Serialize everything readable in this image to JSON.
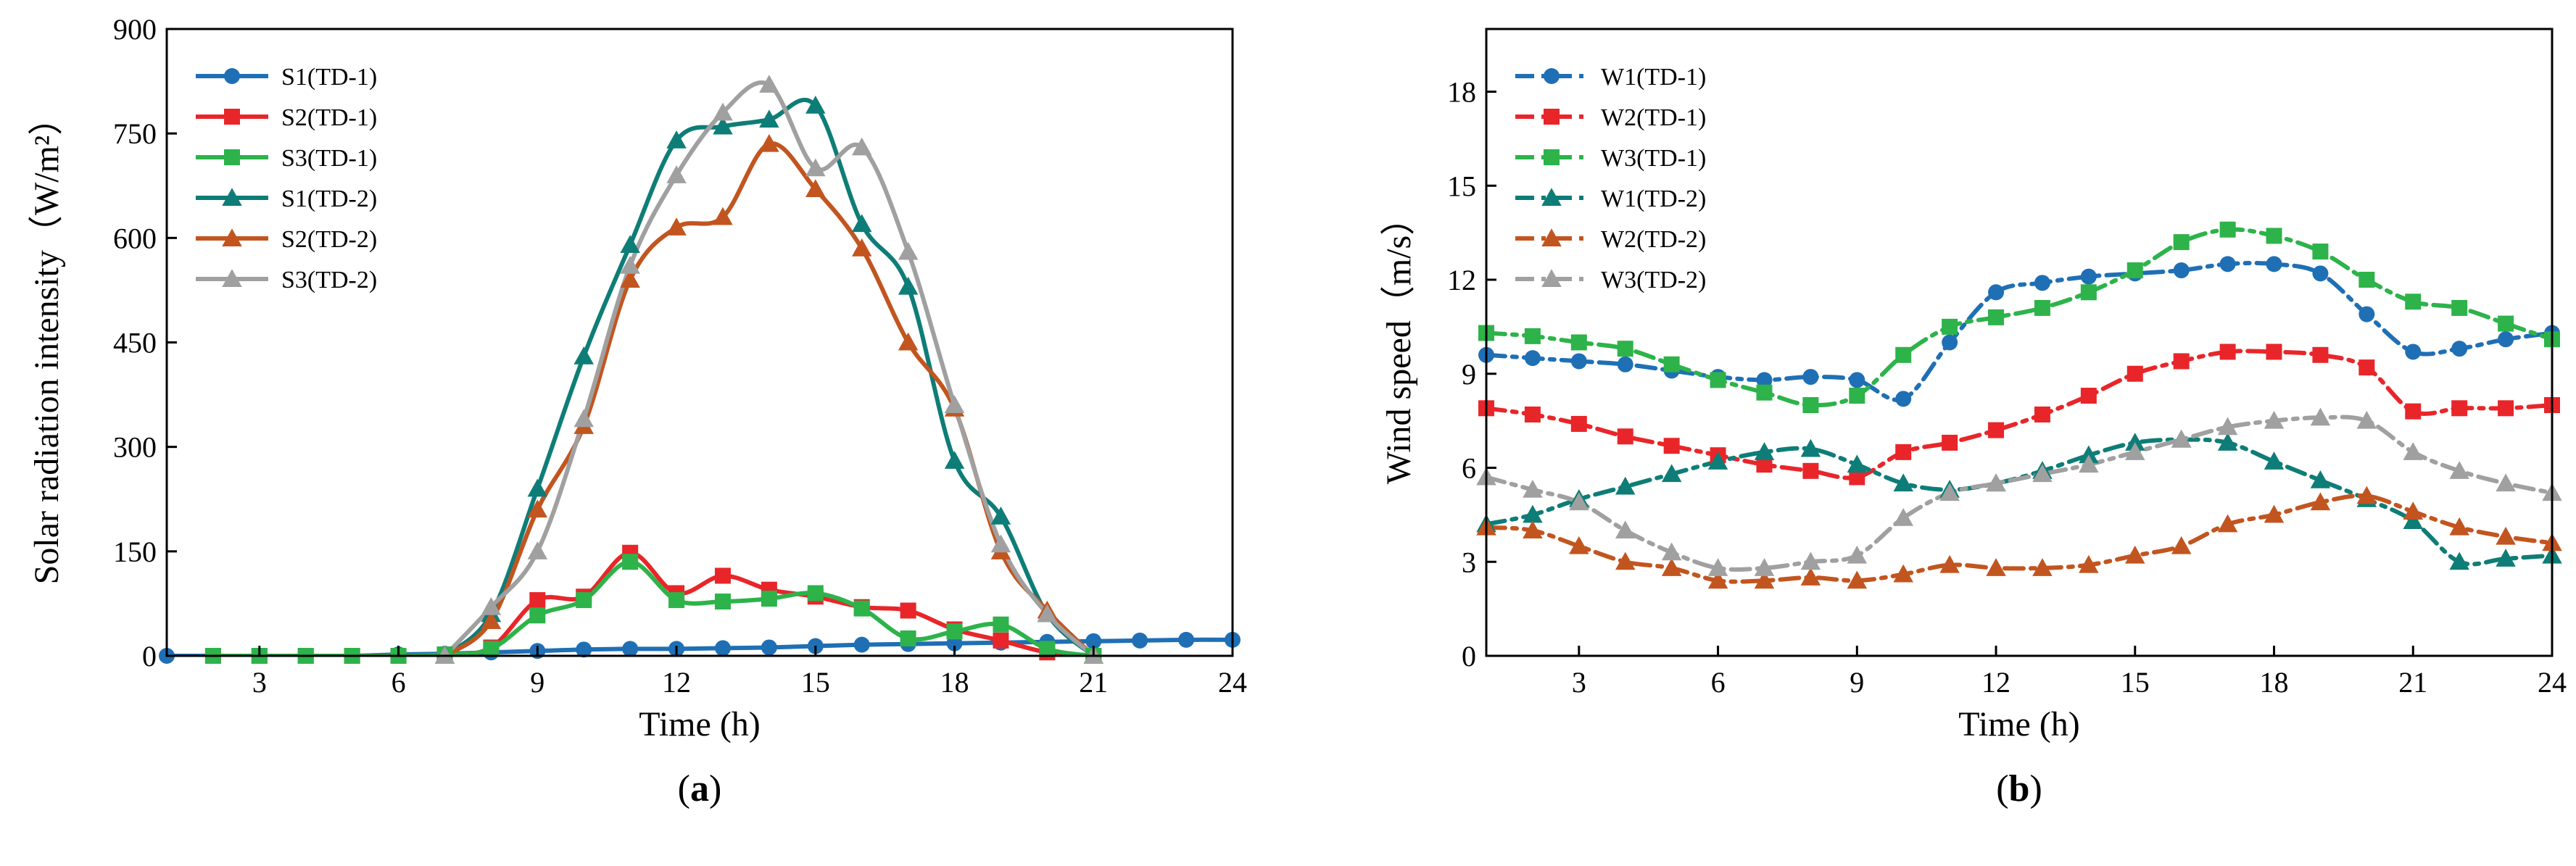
{
  "chart_data": [
    {
      "type": "line",
      "panel_label": {
        "open": "(",
        "letter": "a",
        "close": ")"
      },
      "xlabel": "Time (h)",
      "ylabel": "Solar radiation intensity（W/m²）",
      "xlim": [
        1,
        24
      ],
      "ylim": [
        0,
        900
      ],
      "xticks": [
        3,
        6,
        9,
        12,
        15,
        18,
        21,
        24
      ],
      "yticks": [
        0,
        150,
        300,
        450,
        600,
        750,
        900
      ],
      "legend_position": "top-left",
      "series": [
        {
          "name": "S1(TD-1)",
          "color": "#1f6fb5",
          "marker": "circle",
          "dash": "solid",
          "x": [
            1,
            2,
            3,
            4,
            5,
            6,
            7,
            8,
            9,
            10,
            11,
            12,
            13,
            14,
            15,
            16,
            17,
            18,
            19,
            20,
            21,
            22,
            23,
            24
          ],
          "y": [
            0,
            0,
            0,
            0,
            0,
            2,
            3,
            5,
            7,
            9,
            10,
            10,
            11,
            12,
            14,
            16,
            17,
            18,
            19,
            20,
            21,
            22,
            23,
            23
          ]
        },
        {
          "name": "S2(TD-1)",
          "color": "#e8262a",
          "marker": "square",
          "dash": "solid",
          "x": [
            2,
            3,
            4,
            5,
            6,
            7,
            8,
            9,
            10,
            11,
            12,
            13,
            14,
            15,
            16,
            17,
            18,
            19,
            20,
            21
          ],
          "y": [
            0,
            0,
            0,
            0,
            0,
            2,
            12,
            80,
            85,
            148,
            90,
            115,
            95,
            85,
            70,
            65,
            38,
            22,
            5,
            0
          ]
        },
        {
          "name": "S3(TD-1)",
          "color": "#2db34a",
          "marker": "square",
          "dash": "solid",
          "x": [
            2,
            3,
            4,
            5,
            6,
            7,
            8,
            9,
            10,
            11,
            12,
            13,
            14,
            15,
            16,
            17,
            18,
            19,
            20,
            21
          ],
          "y": [
            0,
            0,
            0,
            0,
            0,
            2,
            10,
            58,
            80,
            135,
            80,
            78,
            82,
            90,
            68,
            25,
            35,
            45,
            10,
            0
          ]
        },
        {
          "name": "S1(TD-2)",
          "color": "#0e7d77",
          "marker": "triangle",
          "dash": "solid",
          "x": [
            7,
            8,
            9,
            10,
            11,
            12,
            13,
            14,
            15,
            16,
            17,
            18,
            19,
            20,
            21
          ],
          "y": [
            0,
            60,
            240,
            430,
            590,
            740,
            760,
            770,
            790,
            620,
            530,
            280,
            200,
            60,
            0
          ]
        },
        {
          "name": "S2(TD-2)",
          "color": "#c2551f",
          "marker": "triangle",
          "dash": "solid",
          "x": [
            7,
            8,
            9,
            10,
            11,
            12,
            13,
            14,
            15,
            16,
            17,
            18,
            19,
            20,
            21
          ],
          "y": [
            0,
            50,
            210,
            330,
            540,
            615,
            630,
            735,
            670,
            585,
            450,
            355,
            150,
            65,
            0
          ]
        },
        {
          "name": "S3(TD-2)",
          "color": "#a0a0a0",
          "marker": "triangle",
          "dash": "solid",
          "x": [
            7,
            8,
            9,
            10,
            11,
            12,
            13,
            14,
            15,
            16,
            17,
            18,
            19,
            20,
            21
          ],
          "y": [
            0,
            70,
            150,
            340,
            560,
            690,
            780,
            820,
            700,
            730,
            580,
            360,
            160,
            60,
            0
          ]
        }
      ]
    },
    {
      "type": "line",
      "panel_label": {
        "open": "(",
        "letter": "b",
        "close": ")"
      },
      "xlabel": "Time (h)",
      "ylabel": "Wind speed（m/s）",
      "xlim": [
        1,
        24
      ],
      "ylim": [
        0,
        20
      ],
      "xticks": [
        3,
        6,
        9,
        12,
        15,
        18,
        21,
        24
      ],
      "yticks": [
        0,
        3,
        6,
        9,
        12,
        15,
        18
      ],
      "legend_position": "top-left",
      "series": [
        {
          "name": "W1(TD-1)",
          "color": "#1f6fb5",
          "marker": "circle",
          "dash": "dashdot",
          "x": [
            1,
            2,
            3,
            4,
            5,
            6,
            7,
            8,
            9,
            10,
            11,
            12,
            13,
            14,
            15,
            16,
            17,
            18,
            19,
            20,
            21,
            22,
            23,
            24
          ],
          "y": [
            9.6,
            9.5,
            9.4,
            9.3,
            9.1,
            8.9,
            8.8,
            8.9,
            8.8,
            8.2,
            10.0,
            11.6,
            11.9,
            12.1,
            12.2,
            12.3,
            12.5,
            12.5,
            12.2,
            10.9,
            9.7,
            9.8,
            10.1,
            10.3
          ]
        },
        {
          "name": "W2(TD-1)",
          "color": "#e8262a",
          "marker": "square",
          "dash": "dashdot",
          "x": [
            1,
            2,
            3,
            4,
            5,
            6,
            7,
            8,
            9,
            10,
            11,
            12,
            13,
            14,
            15,
            16,
            17,
            18,
            19,
            20,
            21,
            22,
            23,
            24
          ],
          "y": [
            7.9,
            7.7,
            7.4,
            7.0,
            6.7,
            6.4,
            6.1,
            5.9,
            5.7,
            6.5,
            6.8,
            7.2,
            7.7,
            8.3,
            9.0,
            9.4,
            9.7,
            9.7,
            9.6,
            9.2,
            7.8,
            7.9,
            7.9,
            8.0
          ]
        },
        {
          "name": "W3(TD-1)",
          "color": "#2db34a",
          "marker": "square",
          "dash": "dashdot",
          "x": [
            1,
            2,
            3,
            4,
            5,
            6,
            7,
            8,
            9,
            10,
            11,
            12,
            13,
            14,
            15,
            16,
            17,
            18,
            19,
            20,
            21,
            22,
            23,
            24
          ],
          "y": [
            10.3,
            10.2,
            10.0,
            9.8,
            9.3,
            8.8,
            8.4,
            8.0,
            8.3,
            9.6,
            10.5,
            10.8,
            11.1,
            11.6,
            12.3,
            13.2,
            13.6,
            13.4,
            12.9,
            12.0,
            11.3,
            11.1,
            10.6,
            10.1
          ]
        },
        {
          "name": "W1(TD-2)",
          "color": "#0e7d77",
          "marker": "triangle",
          "dash": "dashdot",
          "x": [
            1,
            2,
            3,
            4,
            5,
            6,
            7,
            8,
            9,
            10,
            11,
            12,
            13,
            14,
            15,
            16,
            17,
            18,
            19,
            20,
            21,
            22,
            23,
            24
          ],
          "y": [
            4.2,
            4.5,
            5.0,
            5.4,
            5.8,
            6.2,
            6.5,
            6.6,
            6.1,
            5.5,
            5.3,
            5.5,
            5.9,
            6.4,
            6.8,
            6.9,
            6.8,
            6.2,
            5.6,
            5.0,
            4.3,
            3.0,
            3.1,
            3.2
          ]
        },
        {
          "name": "W2(TD-2)",
          "color": "#c2551f",
          "marker": "triangle",
          "dash": "dashdot",
          "x": [
            1,
            2,
            3,
            4,
            5,
            6,
            7,
            8,
            9,
            10,
            11,
            12,
            13,
            14,
            15,
            16,
            17,
            18,
            19,
            20,
            21,
            22,
            23,
            24
          ],
          "y": [
            4.1,
            4.0,
            3.5,
            3.0,
            2.8,
            2.4,
            2.4,
            2.5,
            2.4,
            2.6,
            2.9,
            2.8,
            2.8,
            2.9,
            3.2,
            3.5,
            4.2,
            4.5,
            4.9,
            5.1,
            4.6,
            4.1,
            3.8,
            3.6
          ]
        },
        {
          "name": "W3(TD-2)",
          "color": "#a0a0a0",
          "marker": "triangle",
          "dash": "dashdot",
          "x": [
            1,
            2,
            3,
            4,
            5,
            6,
            7,
            8,
            9,
            10,
            11,
            12,
            13,
            14,
            15,
            16,
            17,
            18,
            19,
            20,
            21,
            22,
            23,
            24
          ],
          "y": [
            5.7,
            5.3,
            4.9,
            4.0,
            3.3,
            2.8,
            2.8,
            3.0,
            3.2,
            4.4,
            5.2,
            5.5,
            5.8,
            6.1,
            6.5,
            6.9,
            7.3,
            7.5,
            7.6,
            7.5,
            6.5,
            5.9,
            5.5,
            5.2
          ]
        }
      ]
    }
  ]
}
